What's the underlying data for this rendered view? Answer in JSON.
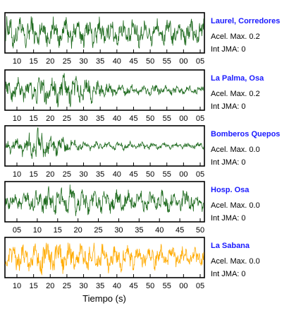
{
  "chart_data": {
    "type": "line",
    "xlabel": "Tiempo (s)",
    "panels": [
      {
        "name": "Laurel, Corredores",
        "acel_max": "Acel. Max. 0.2",
        "int_jma": "Int JMA: 0",
        "ticks": [
          "10",
          "15",
          "20",
          "25",
          "30",
          "35",
          "40",
          "45",
          "50",
          "55",
          "00",
          "05"
        ],
        "color": "#1f6b1f",
        "amplitude": 0.85,
        "envelope": [
          [
            0,
            1.0
          ],
          [
            0.5,
            0.9
          ],
          [
            1,
            0.85
          ]
        ]
      },
      {
        "name": "La Palma, Osa",
        "acel_max": "Acel. Max. 0.2",
        "int_jma": "Int JMA: 0",
        "ticks": [
          "10",
          "15",
          "20",
          "25",
          "30",
          "35",
          "40",
          "45",
          "50",
          "55",
          "00",
          "05"
        ],
        "color": "#1f6b1f",
        "amplitude": 0.9,
        "envelope": [
          [
            0,
            0.55
          ],
          [
            0.25,
            1.0
          ],
          [
            0.4,
            0.8
          ],
          [
            0.55,
            0.35
          ],
          [
            1,
            0.25
          ]
        ]
      },
      {
        "name": "Bomberos Quepos",
        "acel_max": "Acel. Max. 0.0",
        "int_jma": "Int JMA: 0",
        "ticks": [
          "10",
          "15",
          "20",
          "25",
          "30",
          "35",
          "40",
          "45",
          "50",
          "55",
          "00",
          "05"
        ],
        "color": "#1f6b1f",
        "amplitude": 0.95,
        "envelope": [
          [
            0,
            0.35
          ],
          [
            0.1,
            0.6
          ],
          [
            0.16,
            1.0
          ],
          [
            0.25,
            0.55
          ],
          [
            0.4,
            0.25
          ],
          [
            1,
            0.18
          ]
        ]
      },
      {
        "name": "Hosp. Osa",
        "acel_max": "Acel. Max. 0.0",
        "int_jma": "Int JMA: 0",
        "ticks": [
          "05",
          "10",
          "15",
          "20",
          "25",
          "30",
          "35",
          "40",
          "45",
          "50"
        ],
        "color": "#1f6b1f",
        "amplitude": 0.9,
        "envelope": [
          [
            0,
            0.45
          ],
          [
            0.2,
            0.75
          ],
          [
            0.3,
            1.0
          ],
          [
            0.45,
            0.7
          ],
          [
            0.7,
            0.6
          ],
          [
            0.95,
            0.75
          ],
          [
            1,
            0.5
          ]
        ]
      },
      {
        "name": "La Sabana",
        "acel_max": "Acel. Max. 0.0",
        "int_jma": "Int JMA: 0",
        "ticks": [
          "10",
          "15",
          "20",
          "25",
          "30",
          "35",
          "40",
          "45",
          "50",
          "55",
          "00",
          "05"
        ],
        "color": "#ffaa00",
        "amplitude": 0.9,
        "envelope": [
          [
            0,
            0.75
          ],
          [
            0.2,
            1.0
          ],
          [
            0.5,
            0.8
          ],
          [
            1,
            0.6
          ]
        ]
      }
    ]
  }
}
